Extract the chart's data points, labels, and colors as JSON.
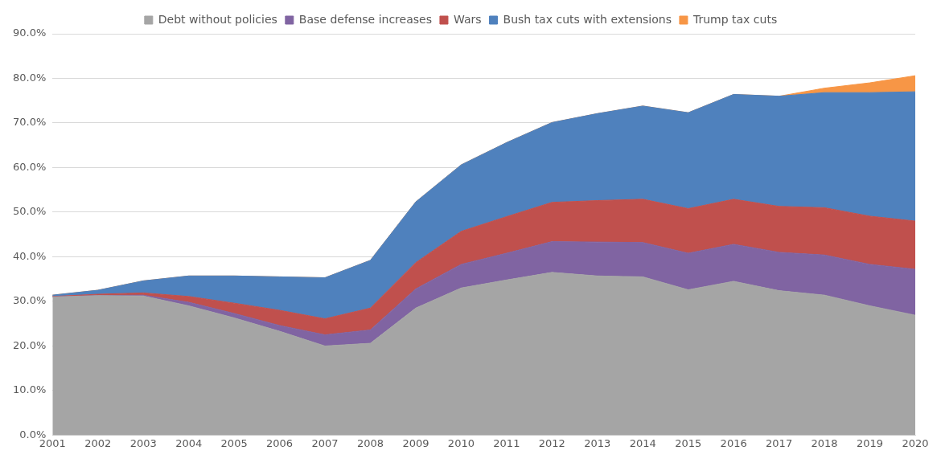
{
  "chart_data": {
    "type": "area",
    "stacked": true,
    "categories": [
      "2001",
      "2002",
      "2003",
      "2004",
      "2005",
      "2006",
      "2007",
      "2008",
      "2009",
      "2010",
      "2011",
      "2012",
      "2013",
      "2014",
      "2015",
      "2016",
      "2017",
      "2018",
      "2019",
      "2020"
    ],
    "series": [
      {
        "name": "Debt without policies",
        "color": "#a5a5a5",
        "values": [
          31.0,
          31.3,
          31.2,
          29.0,
          26.3,
          23.3,
          20.0,
          20.6,
          28.5,
          33.0,
          34.8,
          36.5,
          35.7,
          35.5,
          32.6,
          34.5,
          32.4,
          31.4,
          29.0,
          26.9
        ]
      },
      {
        "name": "Base defense increases",
        "color": "#8064a2",
        "values": [
          0,
          0,
          0.2,
          0.8,
          1.0,
          1.3,
          2.5,
          3.0,
          4.3,
          5.3,
          6.0,
          6.9,
          7.6,
          7.7,
          8.2,
          8.3,
          8.6,
          9.0,
          9.3,
          10.3
        ]
      },
      {
        "name": "Wars",
        "color": "#c0504d",
        "values": [
          0.1,
          0.3,
          0.5,
          1.3,
          2.3,
          3.4,
          3.6,
          4.9,
          5.9,
          7.4,
          8.2,
          8.8,
          9.3,
          9.7,
          10.0,
          10.1,
          10.3,
          10.6,
          10.8,
          10.8
        ]
      },
      {
        "name": "Bush tax cuts with extensions",
        "color": "#4f81bd",
        "values": [
          0.3,
          0.9,
          2.7,
          4.6,
          6.1,
          7.5,
          9.2,
          10.7,
          13.6,
          14.9,
          16.6,
          17.9,
          19.5,
          20.9,
          21.5,
          23.5,
          24.7,
          25.8,
          27.7,
          29.0
        ]
      },
      {
        "name": "Trump tax cuts",
        "color": "#f79646",
        "values": [
          0,
          0,
          0,
          0,
          0,
          0,
          0,
          0,
          0,
          0,
          0,
          0,
          0,
          0,
          0,
          0,
          0,
          1.0,
          2.2,
          3.6
        ]
      }
    ],
    "ylim": [
      0,
      90
    ],
    "yticks": [
      {
        "value": 0,
        "label": "0.0%"
      },
      {
        "value": 10,
        "label": "10.0%"
      },
      {
        "value": 20,
        "label": "20.0%"
      },
      {
        "value": 30,
        "label": "30.0%"
      },
      {
        "value": 40,
        "label": "40.0%"
      },
      {
        "value": 50,
        "label": "50.0%"
      },
      {
        "value": 60,
        "label": "60.0%"
      },
      {
        "value": 70,
        "label": "70.0%"
      },
      {
        "value": 80,
        "label": "80.0%"
      },
      {
        "value": 90,
        "label": "90.0%"
      }
    ],
    "grid": "y",
    "legend": "top"
  }
}
